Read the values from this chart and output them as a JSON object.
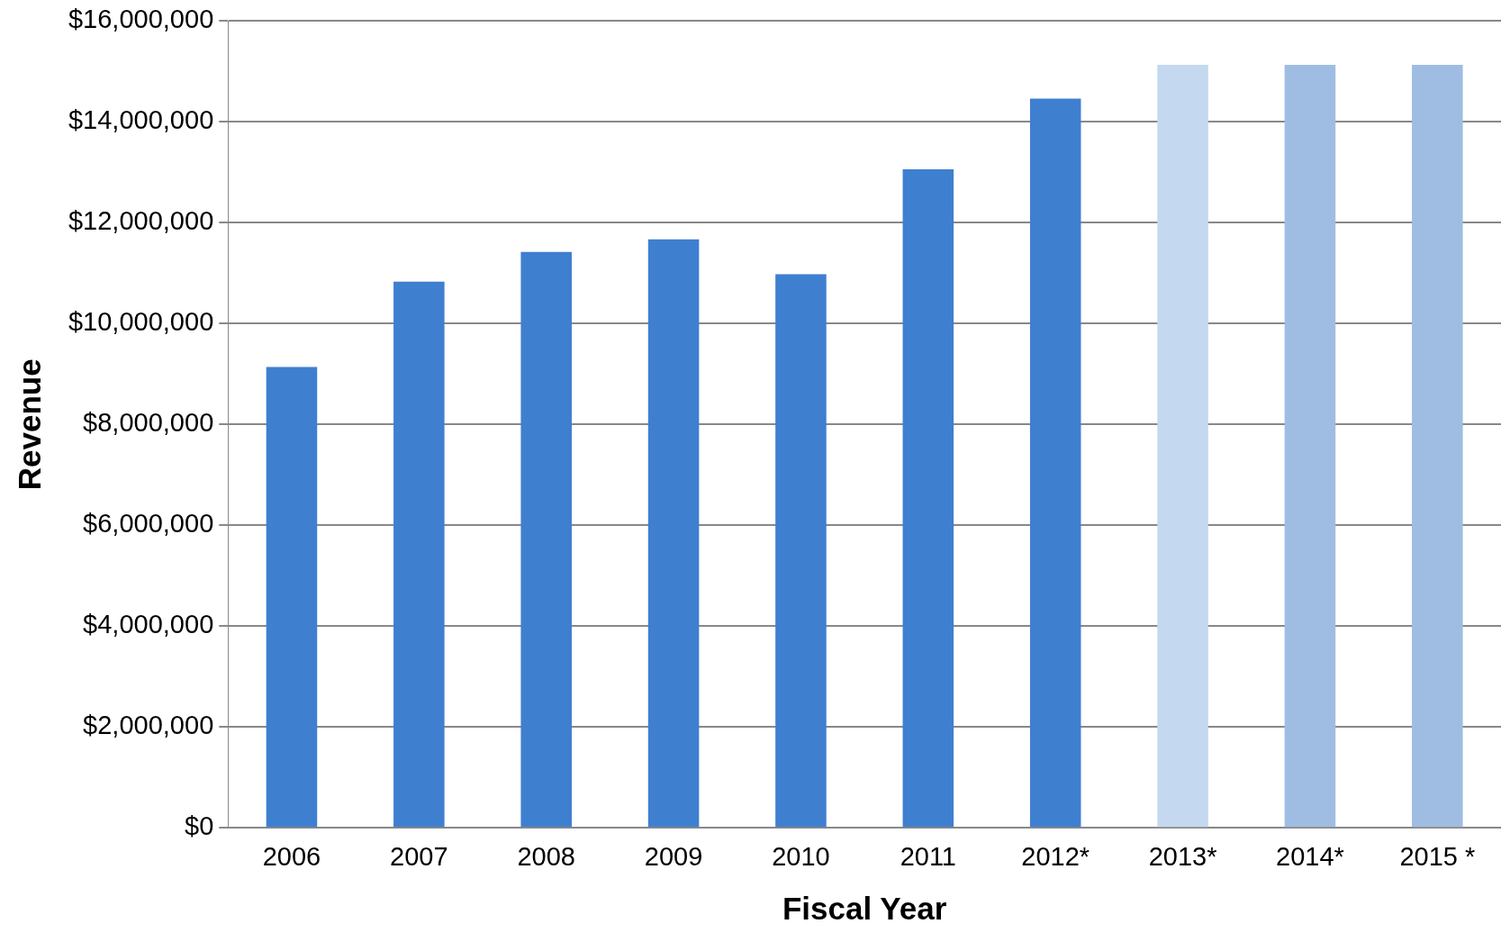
{
  "chart_data": {
    "type": "bar",
    "xlabel": "Fiscal Year",
    "ylabel": "Revenue",
    "categories": [
      "2006",
      "2007",
      "2008",
      "2009",
      "2010",
      "2011",
      "2012*",
      "2013*",
      "2014*",
      "2015 *"
    ],
    "values": [
      9140000,
      10830000,
      11420000,
      11670000,
      10980000,
      13060000,
      14460000,
      15130000,
      15130000,
      15130000
    ],
    "colors": [
      "#3f7fd0",
      "#3f7fd0",
      "#3f7fd0",
      "#3f7fd0",
      "#3f7fd0",
      "#3f7fd0",
      "#3f7fd0",
      "#c4d8f0",
      "#9fbde3",
      "#9fbde3"
    ],
    "ylim": [
      0,
      16000000
    ],
    "yticks": [
      {
        "value": 0,
        "label": "$0"
      },
      {
        "value": 2000000,
        "label": "$2,000,000"
      },
      {
        "value": 4000000,
        "label": "$4,000,000"
      },
      {
        "value": 6000000,
        "label": "$6,000,000"
      },
      {
        "value": 8000000,
        "label": "$8,000,000"
      },
      {
        "value": 10000000,
        "label": "$10,000,000"
      },
      {
        "value": 12000000,
        "label": "$12,000,000"
      },
      {
        "value": 14000000,
        "label": "$14,000,000"
      },
      {
        "value": 16000000,
        "label": "$16,000,000"
      }
    ],
    "grid": "y"
  }
}
